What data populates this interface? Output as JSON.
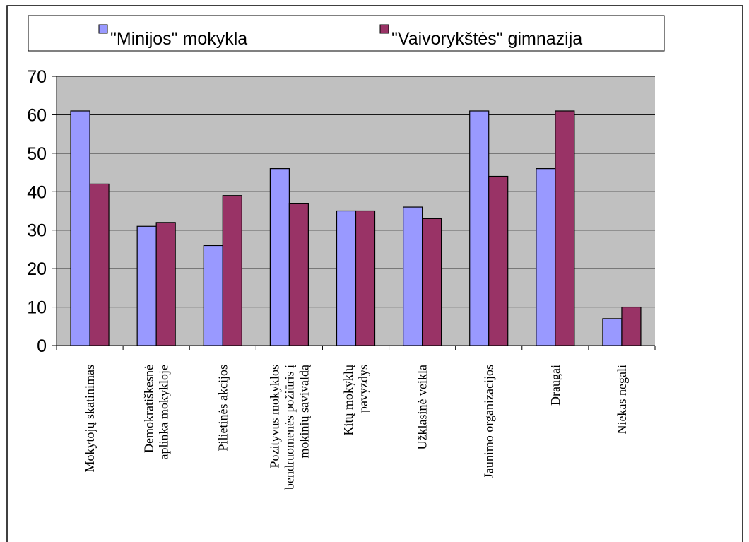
{
  "chart_data": {
    "type": "bar",
    "categories": [
      "Mokytojų skatinimas",
      "Demokratiškesnė\naplinka mokykloje",
      "Pilietinės akcijos",
      "Pozityvus mokyklos\nbendruomenės požiūris į\nmokinių savivaldą",
      "Kitų mokyklų\npavyzdys",
      "Užklasinė veikla",
      "Jaunimo organizacijos",
      "Draugai",
      "Niekas negali"
    ],
    "series": [
      {
        "name": "\"Minijos\" mokykla",
        "color": "#9999ff",
        "values": [
          61,
          31,
          26,
          46,
          35,
          36,
          61,
          46,
          7
        ]
      },
      {
        "name": "\"Vaivorykštės\" gimnazija",
        "color": "#993366",
        "values": [
          42,
          32,
          39,
          37,
          35,
          33,
          44,
          61,
          10
        ]
      }
    ],
    "ylim": [
      0,
      70
    ],
    "yticks": [
      0,
      10,
      20,
      30,
      40,
      50,
      60,
      70
    ],
    "grid": true,
    "legend": "top"
  }
}
